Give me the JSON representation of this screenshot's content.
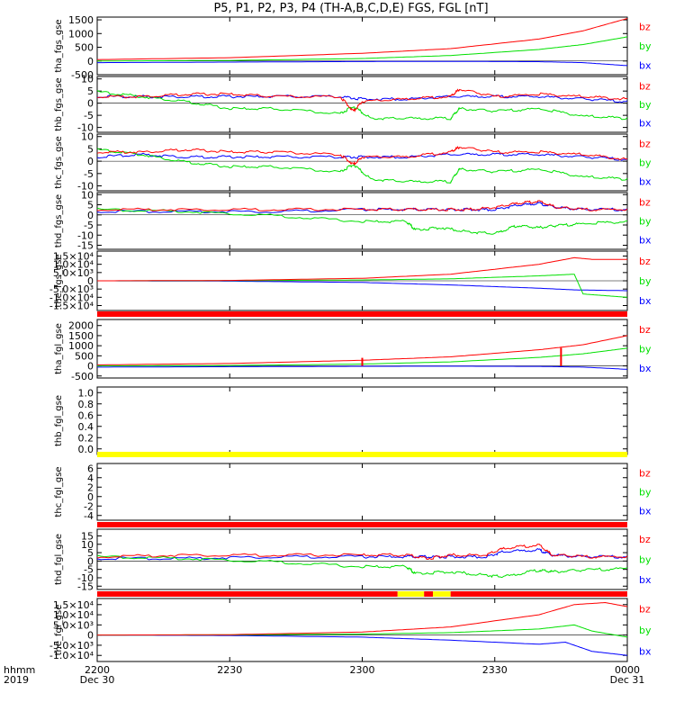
{
  "title": "P5, P1, P2, P3, P4 (TH-A,B,C,D,E) FGS, FGL [nT]",
  "colors": {
    "bx": "#0000ff",
    "by": "#00e000",
    "bz": "#ff0000",
    "flag_red": "#ff0000",
    "flag_yellow": "#ffff00",
    "axis": "#000000"
  },
  "x_axis": {
    "row_labels": [
      "hhmm",
      "2019"
    ],
    "ticks": [
      {
        "value": 0,
        "label": "2200",
        "sublabel": "Dec 30"
      },
      {
        "value": 30,
        "label": "2230",
        "sublabel": ""
      },
      {
        "value": 60,
        "label": "2300",
        "sublabel": ""
      },
      {
        "value": 90,
        "label": "2330",
        "sublabel": ""
      },
      {
        "value": 120,
        "label": "0000",
        "sublabel": "Dec 31"
      }
    ],
    "range": [
      0,
      120
    ],
    "unit": "minutes"
  },
  "chart_data": [
    {
      "type": "line",
      "ylabel": "tha_fgs_gse",
      "ylim": [
        -500,
        1600
      ],
      "yticks": [
        {
          "v": 1500,
          "t": "1500"
        },
        {
          "v": 1000,
          "t": "1000"
        },
        {
          "v": 500,
          "t": "500"
        },
        {
          "v": 0,
          "t": "0"
        },
        {
          "v": -500,
          "t": "-500"
        }
      ],
      "legend": [
        "bz",
        "by",
        "bx"
      ],
      "series": [
        {
          "name": "bz",
          "x": [
            0,
            30,
            60,
            80,
            100,
            110,
            120
          ],
          "values": [
            50,
            120,
            280,
            450,
            800,
            1100,
            1550
          ]
        },
        {
          "name": "by",
          "x": [
            0,
            30,
            60,
            80,
            100,
            110,
            120
          ],
          "values": [
            0,
            20,
            90,
            200,
            420,
            600,
            880
          ]
        },
        {
          "name": "bx",
          "x": [
            0,
            30,
            60,
            80,
            100,
            110,
            120
          ],
          "values": [
            -60,
            -40,
            -20,
            -15,
            -25,
            -60,
            -170
          ]
        }
      ]
    },
    {
      "type": "line",
      "ylabel": "thb_fgs_gse",
      "ylim": [
        -12,
        11
      ],
      "yticks": [
        {
          "v": 10,
          "t": "10"
        },
        {
          "v": 5,
          "t": "5"
        },
        {
          "v": 0,
          "t": "0"
        },
        {
          "v": -5,
          "t": "-5"
        },
        {
          "v": -10,
          "t": "-10"
        }
      ],
      "legend": [
        "bz",
        "by",
        "bx"
      ],
      "series": [
        {
          "name": "bz",
          "x": [
            0,
            10,
            20,
            30,
            40,
            55,
            58,
            60,
            70,
            80,
            82,
            90,
            100,
            110,
            120
          ],
          "values": [
            3,
            3,
            4,
            4,
            3,
            3,
            -3,
            1,
            2,
            3,
            6,
            3,
            4,
            3,
            2
          ]
        },
        {
          "name": "by",
          "x": [
            0,
            10,
            20,
            30,
            40,
            55,
            58,
            62,
            70,
            80,
            82,
            90,
            100,
            110,
            120
          ],
          "values": [
            5,
            3,
            1,
            -2,
            -2,
            -4,
            -1,
            -6,
            -6,
            -6,
            -2,
            -3,
            -2,
            -5,
            -6
          ]
        },
        {
          "name": "bx",
          "x": [
            0,
            10,
            20,
            30,
            40,
            55,
            60,
            70,
            80,
            90,
            100,
            110,
            120
          ],
          "values": [
            3,
            3,
            3,
            3,
            3,
            3,
            2,
            2,
            3,
            3,
            3,
            2,
            1
          ]
        }
      ]
    },
    {
      "type": "line",
      "ylabel": "thc_fgs_gse",
      "ylim": [
        -12,
        11
      ],
      "yticks": [
        {
          "v": 10,
          "t": "10"
        },
        {
          "v": 5,
          "t": "5"
        },
        {
          "v": 0,
          "t": "0"
        },
        {
          "v": -5,
          "t": "-5"
        },
        {
          "v": -10,
          "t": "-10"
        }
      ],
      "legend": [
        "bz",
        "by",
        "bx"
      ],
      "series": [
        {
          "name": "bz",
          "x": [
            0,
            10,
            20,
            30,
            40,
            55,
            58,
            60,
            70,
            80,
            82,
            90,
            100,
            110,
            120
          ],
          "values": [
            4,
            4,
            5,
            4,
            4,
            3,
            -1,
            2,
            2,
            4,
            6,
            4,
            4,
            3,
            1
          ]
        },
        {
          "name": "by",
          "x": [
            0,
            10,
            20,
            30,
            40,
            55,
            58,
            62,
            70,
            80,
            82,
            90,
            100,
            110,
            120
          ],
          "values": [
            5,
            3,
            0,
            -2,
            -2,
            -4,
            -1,
            -7,
            -8,
            -8,
            -3,
            -4,
            -3,
            -6,
            -7
          ]
        },
        {
          "name": "bx",
          "x": [
            0,
            10,
            20,
            30,
            40,
            55,
            60,
            70,
            80,
            90,
            100,
            110,
            120
          ],
          "values": [
            2,
            3,
            2,
            2,
            2,
            2,
            2,
            2,
            3,
            3,
            3,
            2,
            1
          ]
        }
      ]
    },
    {
      "type": "line",
      "ylabel": "thd_fgs_gse",
      "ylim": [
        -17,
        11
      ],
      "yticks": [
        {
          "v": 10,
          "t": "10"
        },
        {
          "v": 5,
          "t": "5"
        },
        {
          "v": 0,
          "t": "0"
        },
        {
          "v": -5,
          "t": "-5"
        },
        {
          "v": -10,
          "t": "-10"
        },
        {
          "v": -15,
          "t": "-15"
        }
      ],
      "legend": [
        "bz",
        "by",
        "bx"
      ],
      "series": [
        {
          "name": "bz",
          "x": [
            0,
            20,
            40,
            60,
            70,
            78,
            84,
            90,
            95,
            100,
            104,
            110,
            120
          ],
          "values": [
            3,
            3,
            3,
            3,
            3,
            3,
            3,
            4,
            6,
            7,
            4,
            3,
            3
          ]
        },
        {
          "name": "by",
          "x": [
            0,
            20,
            40,
            60,
            70,
            72,
            78,
            84,
            90,
            95,
            100,
            104,
            110,
            120
          ],
          "values": [
            3,
            2,
            0,
            -3,
            -3,
            -7,
            -6,
            -8,
            -9,
            -5,
            -6,
            -5,
            -4,
            -3
          ]
        },
        {
          "name": "bx",
          "x": [
            0,
            20,
            40,
            60,
            70,
            78,
            84,
            90,
            95,
            100,
            104,
            110,
            120
          ],
          "values": [
            2,
            2,
            2,
            3,
            3,
            3,
            3,
            3,
            5,
            6,
            4,
            3,
            3
          ]
        }
      ]
    },
    {
      "type": "line",
      "ylabel": "the_fgs_gse",
      "ylim": [
        -18000,
        18000
      ],
      "yticks": [
        {
          "v": 15000,
          "t": "1.5×10⁴"
        },
        {
          "v": 10000,
          "t": "1.0×10⁴"
        },
        {
          "v": 5000,
          "t": "5.0×10³"
        },
        {
          "v": 0,
          "t": "0"
        },
        {
          "v": -5000,
          "t": "-5.0×10³"
        },
        {
          "v": -10000,
          "t": "-1.0×10⁴"
        },
        {
          "v": -15000,
          "t": "-1.5×10⁴"
        }
      ],
      "legend": [
        "bz",
        "by",
        "bx"
      ],
      "series": [
        {
          "name": "bz",
          "x": [
            0,
            30,
            60,
            80,
            100,
            108,
            112,
            120
          ],
          "values": [
            0,
            200,
            1500,
            4000,
            10000,
            14000,
            13000,
            13000
          ]
        },
        {
          "name": "by",
          "x": [
            0,
            30,
            60,
            80,
            100,
            108,
            110,
            120
          ],
          "values": [
            0,
            100,
            500,
            1200,
            3000,
            4000,
            -8000,
            -10000
          ]
        },
        {
          "name": "bx",
          "x": [
            0,
            30,
            60,
            80,
            100,
            108,
            120
          ],
          "values": [
            0,
            -200,
            -1000,
            -2500,
            -4500,
            -5500,
            -6000
          ]
        }
      ]
    },
    {
      "type": "line",
      "ylabel": "tha_fgl_gse",
      "ylim": [
        -600,
        2300
      ],
      "yticks": [
        {
          "v": 2000,
          "t": "2000"
        },
        {
          "v": 1500,
          "t": "1500"
        },
        {
          "v": 1000,
          "t": "1000"
        },
        {
          "v": 500,
          "t": "500"
        },
        {
          "v": 0,
          "t": "0"
        },
        {
          "v": -500,
          "t": "-500"
        }
      ],
      "legend": [
        "bz",
        "by",
        "bx"
      ],
      "series": [
        {
          "name": "bz",
          "x": [
            0,
            30,
            60,
            80,
            100,
            110,
            120
          ],
          "values": [
            50,
            120,
            280,
            450,
            800,
            1050,
            1500
          ]
        },
        {
          "name": "by",
          "x": [
            0,
            30,
            60,
            80,
            100,
            110,
            120
          ],
          "values": [
            0,
            20,
            90,
            200,
            420,
            600,
            880
          ]
        },
        {
          "name": "bx",
          "x": [
            0,
            30,
            60,
            80,
            100,
            110,
            120
          ],
          "values": [
            -60,
            -40,
            -20,
            -15,
            -25,
            -60,
            -170
          ]
        }
      ],
      "spikes": [
        {
          "x": 60,
          "from": 0,
          "to": 400
        },
        {
          "x": 105,
          "from": 0,
          "to": 900
        }
      ]
    },
    {
      "type": "line",
      "ylabel": "thb_fgl_gse",
      "ylim": [
        -0.1,
        1.1
      ],
      "yticks": [
        {
          "v": 1.0,
          "t": "1.0"
        },
        {
          "v": 0.8,
          "t": "0.8"
        },
        {
          "v": 0.6,
          "t": "0.6"
        },
        {
          "v": 0.4,
          "t": "0.4"
        },
        {
          "v": 0.2,
          "t": "0.2"
        },
        {
          "v": 0.0,
          "t": "0.0"
        }
      ],
      "legend": [],
      "series": []
    },
    {
      "type": "line",
      "ylabel": "thc_fgl_gse",
      "ylim": [
        -5,
        7
      ],
      "yticks": [
        {
          "v": 6,
          "t": "6"
        },
        {
          "v": 4,
          "t": "4"
        },
        {
          "v": 2,
          "t": "2"
        },
        {
          "v": 0,
          "t": "0"
        },
        {
          "v": -2,
          "t": "-2"
        },
        {
          "v": -4,
          "t": "-4"
        }
      ],
      "legend": [
        "bz",
        "by",
        "bx"
      ],
      "series": []
    },
    {
      "type": "line",
      "ylabel": "thd_fgl_gse",
      "ylim": [
        -17,
        19
      ],
      "yticks": [
        {
          "v": 15,
          "t": "15"
        },
        {
          "v": 10,
          "t": "10"
        },
        {
          "v": 5,
          "t": "5"
        },
        {
          "v": 0,
          "t": "0"
        },
        {
          "v": -5,
          "t": "-5"
        },
        {
          "v": -10,
          "t": "-10"
        },
        {
          "v": -15,
          "t": "-15"
        }
      ],
      "legend": [
        "bz",
        "by",
        "bx"
      ],
      "series": [
        {
          "name": "bz",
          "x": [
            0,
            20,
            40,
            60,
            70,
            75,
            80,
            88,
            92,
            100,
            103,
            110,
            120
          ],
          "values": [
            3,
            4,
            4,
            4,
            4,
            2,
            4,
            4,
            8,
            10,
            4,
            3,
            3
          ]
        },
        {
          "name": "by",
          "x": [
            0,
            20,
            40,
            60,
            70,
            72,
            80,
            88,
            92,
            100,
            103,
            110,
            120
          ],
          "values": [
            3,
            2,
            0,
            -3,
            -3,
            -7,
            -6,
            -8,
            -9,
            -5,
            -6,
            -5,
            -4
          ]
        },
        {
          "name": "bx",
          "x": [
            0,
            20,
            40,
            60,
            70,
            75,
            80,
            88,
            92,
            100,
            103,
            110,
            120
          ],
          "values": [
            2,
            2,
            3,
            3,
            3,
            3,
            3,
            3,
            6,
            7,
            4,
            3,
            3
          ]
        }
      ]
    },
    {
      "type": "line",
      "ylabel": "the_fgl_gse",
      "ylim": [
        -13000,
        18000
      ],
      "yticks": [
        {
          "v": 15000,
          "t": "1.5×10⁴"
        },
        {
          "v": 10000,
          "t": "1.0×10⁴"
        },
        {
          "v": 5000,
          "t": "5.0×10³"
        },
        {
          "v": 0,
          "t": "0"
        },
        {
          "v": -5000,
          "t": "-5.0×10³"
        },
        {
          "v": -10000,
          "t": "-1.0×10⁴"
        }
      ],
      "legend": [
        "bz",
        "by",
        "bx"
      ],
      "series": [
        {
          "name": "bz",
          "x": [
            0,
            30,
            60,
            80,
            100,
            108,
            115,
            120
          ],
          "values": [
            0,
            200,
            1500,
            4000,
            10000,
            15000,
            16000,
            14000
          ]
        },
        {
          "name": "by",
          "x": [
            0,
            30,
            60,
            80,
            100,
            108,
            112,
            120
          ],
          "values": [
            0,
            100,
            500,
            1200,
            3000,
            5000,
            2000,
            -1000
          ]
        },
        {
          "name": "bx",
          "x": [
            0,
            30,
            60,
            80,
            100,
            106,
            112,
            120
          ],
          "values": [
            0,
            -200,
            -1000,
            -2500,
            -4500,
            -3500,
            -8000,
            -10000
          ]
        }
      ]
    }
  ],
  "flag_bars": [
    {
      "segments": [
        {
          "from": 0,
          "to": 120,
          "color": "red"
        }
      ]
    },
    {
      "segments": [
        {
          "from": 0,
          "to": 120,
          "color": "yellow"
        }
      ]
    },
    {
      "segments": [
        {
          "from": 0,
          "to": 120,
          "color": "red"
        }
      ]
    },
    {
      "segments": [
        {
          "from": 0,
          "to": 68,
          "color": "red"
        },
        {
          "from": 68,
          "to": 74,
          "color": "yellow"
        },
        {
          "from": 74,
          "to": 76,
          "color": "red"
        },
        {
          "from": 76,
          "to": 80,
          "color": "yellow"
        },
        {
          "from": 80,
          "to": 120,
          "color": "red"
        }
      ]
    }
  ]
}
